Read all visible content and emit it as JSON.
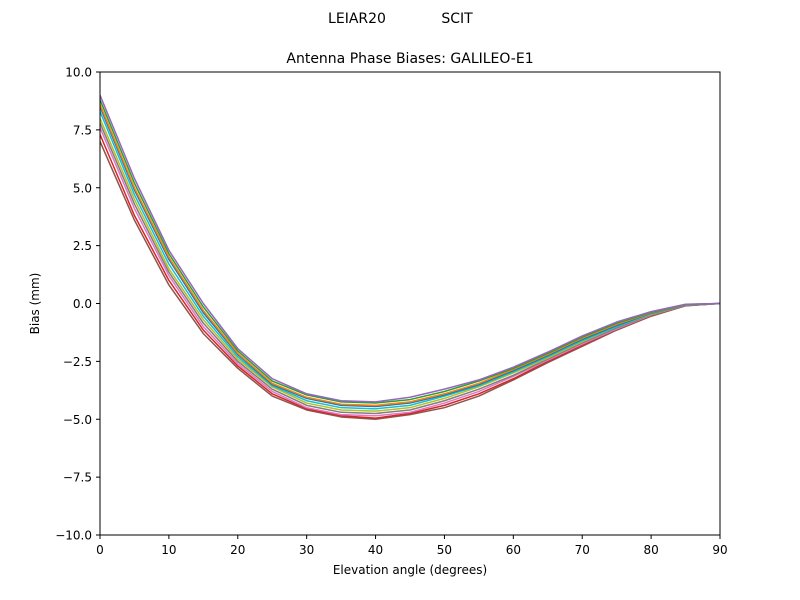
{
  "chart_data": {
    "type": "line",
    "suptitle_left": "LEIAR20",
    "suptitle_right": "SCIT",
    "title": "Antenna Phase Biases: GALILEO-E1",
    "xlabel": "Elevation angle (degrees)",
    "ylabel": "Bias (mm)",
    "xlim": [
      0,
      90
    ],
    "ylim": [
      -10,
      10
    ],
    "xticks": [
      0,
      10,
      20,
      30,
      40,
      50,
      60,
      70,
      80,
      90
    ],
    "xtick_labels": [
      "0",
      "10",
      "20",
      "30",
      "40",
      "50",
      "60",
      "70",
      "80",
      "90"
    ],
    "yticks": [
      10,
      7.5,
      5,
      2.5,
      0,
      -2.5,
      -5,
      -7.5,
      -10
    ],
    "ytick_labels": [
      "10.0",
      "7.5",
      "5.0",
      "2.5",
      "0.0",
      "−2.5",
      "−5.0",
      "−7.5",
      "−10.0"
    ],
    "grid": false,
    "legend": "none",
    "x": [
      0,
      5,
      10,
      15,
      20,
      25,
      30,
      35,
      40,
      45,
      50,
      55,
      60,
      65,
      70,
      75,
      80,
      85,
      90
    ],
    "series_colors": [
      "#8c564b",
      "#d62728",
      "#e377c2",
      "#7f7f7f",
      "#bcbd22",
      "#17becf",
      "#1f77b4",
      "#ff7f0e",
      "#2ca02c",
      "#9467bd"
    ],
    "series": [
      {
        "values": [
          7.0,
          3.6,
          0.8,
          -1.3,
          -2.8,
          -4.0,
          -4.6,
          -4.9,
          -5.0,
          -4.8,
          -4.5,
          -4.0,
          -3.3,
          -2.55,
          -1.85,
          -1.15,
          -0.55,
          -0.1,
          0.0
        ]
      },
      {
        "values": [
          7.3,
          3.8,
          1.0,
          -1.15,
          -2.7,
          -3.9,
          -4.55,
          -4.85,
          -4.95,
          -4.75,
          -4.4,
          -3.9,
          -3.25,
          -2.5,
          -1.8,
          -1.1,
          -0.5,
          -0.1,
          0.0
        ]
      },
      {
        "values": [
          7.6,
          4.1,
          1.2,
          -1.0,
          -2.6,
          -3.8,
          -4.5,
          -4.8,
          -4.85,
          -4.7,
          -4.3,
          -3.8,
          -3.15,
          -2.45,
          -1.75,
          -1.1,
          -0.5,
          -0.08,
          0.0
        ]
      },
      {
        "values": [
          7.8,
          4.3,
          1.35,
          -0.85,
          -2.5,
          -3.7,
          -4.4,
          -4.7,
          -4.75,
          -4.6,
          -4.2,
          -3.7,
          -3.1,
          -2.4,
          -1.7,
          -1.05,
          -0.48,
          -0.08,
          0.0
        ]
      },
      {
        "values": [
          8.0,
          4.5,
          1.5,
          -0.7,
          -2.4,
          -3.6,
          -4.3,
          -4.6,
          -4.65,
          -4.5,
          -4.1,
          -3.6,
          -3.0,
          -2.35,
          -1.65,
          -1.0,
          -0.46,
          -0.07,
          0.0
        ]
      },
      {
        "values": [
          8.3,
          4.7,
          1.7,
          -0.55,
          -2.3,
          -3.55,
          -4.2,
          -4.5,
          -4.55,
          -4.4,
          -4.0,
          -3.55,
          -2.95,
          -2.3,
          -1.6,
          -1.0,
          -0.44,
          -0.07,
          0.0
        ]
      },
      {
        "values": [
          8.5,
          4.9,
          1.9,
          -0.4,
          -2.2,
          -3.5,
          -4.1,
          -4.4,
          -4.45,
          -4.3,
          -3.95,
          -3.5,
          -2.9,
          -2.25,
          -1.55,
          -0.95,
          -0.42,
          -0.06,
          0.0
        ]
      },
      {
        "values": [
          8.6,
          5.0,
          2.0,
          -0.3,
          -2.15,
          -3.45,
          -4.05,
          -4.35,
          -4.4,
          -4.25,
          -3.9,
          -3.45,
          -2.85,
          -2.2,
          -1.5,
          -0.9,
          -0.4,
          -0.05,
          0.0
        ]
      },
      {
        "values": [
          8.8,
          5.2,
          2.15,
          -0.15,
          -2.05,
          -3.35,
          -3.95,
          -4.25,
          -4.3,
          -4.15,
          -3.8,
          -3.35,
          -2.8,
          -2.15,
          -1.45,
          -0.85,
          -0.38,
          -0.04,
          0.0
        ]
      },
      {
        "values": [
          9.0,
          5.4,
          2.3,
          0.0,
          -1.95,
          -3.25,
          -3.9,
          -4.2,
          -4.25,
          -4.05,
          -3.7,
          -3.3,
          -2.75,
          -2.1,
          -1.4,
          -0.8,
          -0.35,
          -0.03,
          0.0
        ]
      }
    ]
  }
}
